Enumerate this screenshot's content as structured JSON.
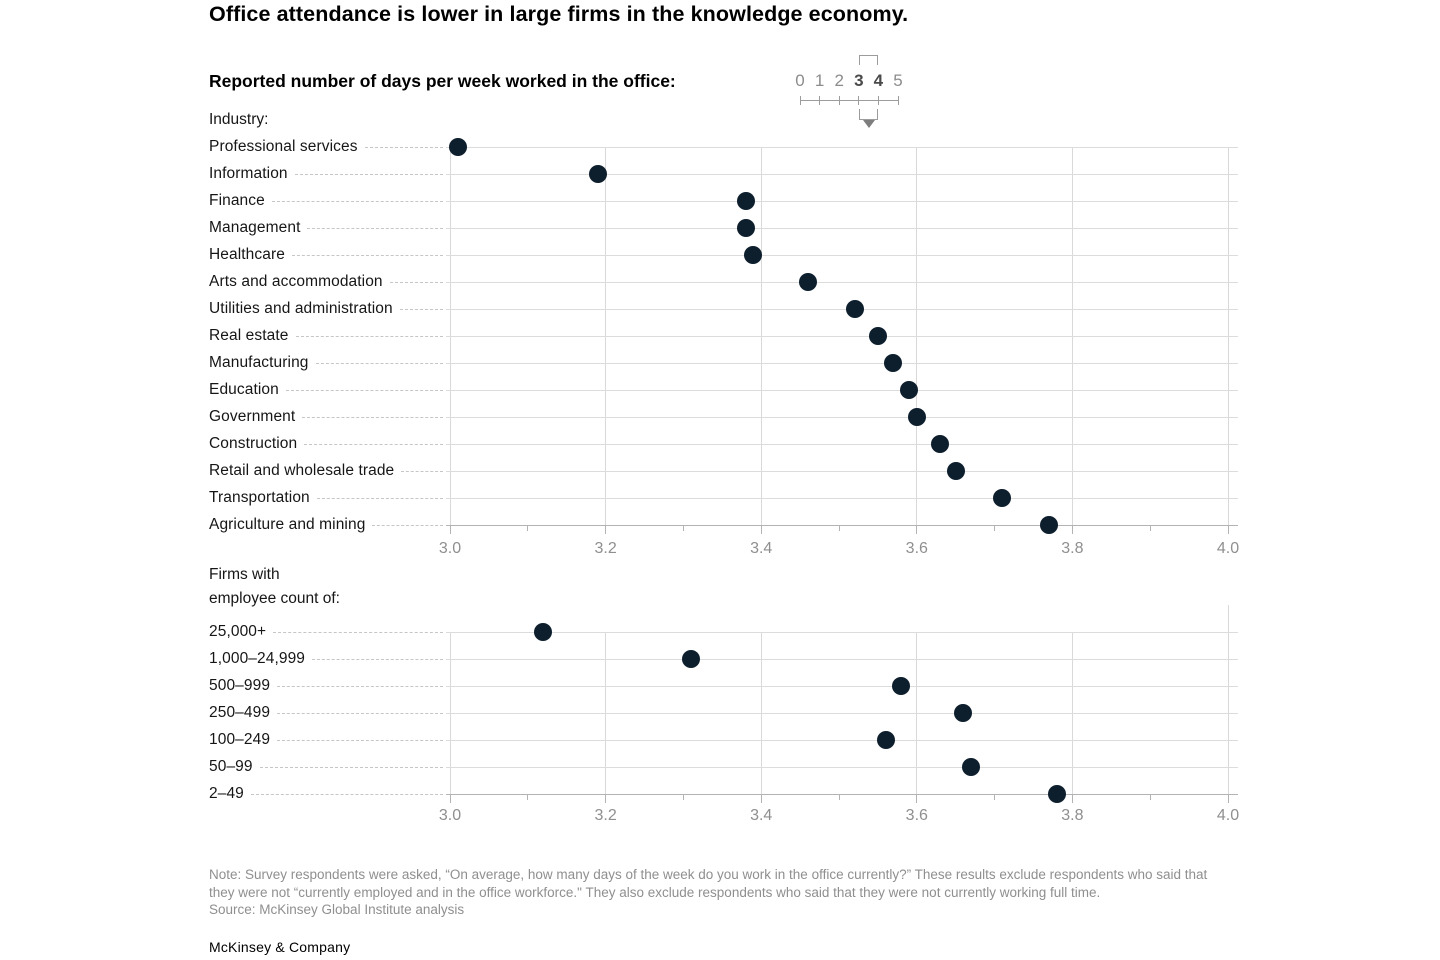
{
  "title": "Office attendance is lower in large firms in the knowledge economy.",
  "subtitle": "Reported number of days per week worked in the office:",
  "legend_scale": {
    "numbers": [
      "0",
      "1",
      "2",
      "3",
      "4",
      "5"
    ],
    "highlighted": [
      "3",
      "4"
    ]
  },
  "chart_data": {
    "type": "scatter",
    "variant": "horizontal-dot-plot",
    "xlim": [
      3.0,
      4.0
    ],
    "x_ticks": [
      3.0,
      3.2,
      3.4,
      3.6,
      3.8,
      4.0
    ],
    "x_tick_labels": [
      "3.0",
      "3.2",
      "3.4",
      "3.6",
      "3.8",
      "4.0"
    ],
    "x_minor_tick_step": 0.1,
    "grid": true,
    "dot_color": "#0d1e2d",
    "panels": [
      {
        "group_label_lines": [
          "Industry:"
        ],
        "categories": [
          "Professional services",
          "Information",
          "Finance",
          "Management",
          "Healthcare",
          "Arts and accommodation",
          "Utilities and administration",
          "Real estate",
          "Manufacturing",
          "Education",
          "Government",
          "Construction",
          "Retail and wholesale trade",
          "Transportation",
          "Agriculture and mining"
        ],
        "values": [
          3.01,
          3.19,
          3.38,
          3.38,
          3.39,
          3.46,
          3.52,
          3.55,
          3.57,
          3.59,
          3.6,
          3.63,
          3.65,
          3.71,
          3.77
        ]
      },
      {
        "group_label_lines": [
          "Firms with",
          "employee count of:"
        ],
        "categories": [
          "25,000+",
          "1,000–24,999",
          "500–999",
          "250–499",
          "100–249",
          "50–99",
          "2–49"
        ],
        "values": [
          3.12,
          3.31,
          3.58,
          3.66,
          3.56,
          3.67,
          3.78
        ]
      }
    ]
  },
  "note": "Note: Survey respondents were asked, “On average, how many days of the week do you work in the office currently?” These results exclude respondents who said that they were not “currently employed and in the office workforce.\" They also exclude respondents who said that they were not currently working full time.",
  "source": "Source: McKinsey Global Institute analysis",
  "footer": "McKinsey & Company",
  "colors": {
    "dot": "#0d1e2d",
    "grid": "#d9d9d9",
    "axis": "#b3b3b3",
    "muted_text": "#8f8f8f"
  }
}
